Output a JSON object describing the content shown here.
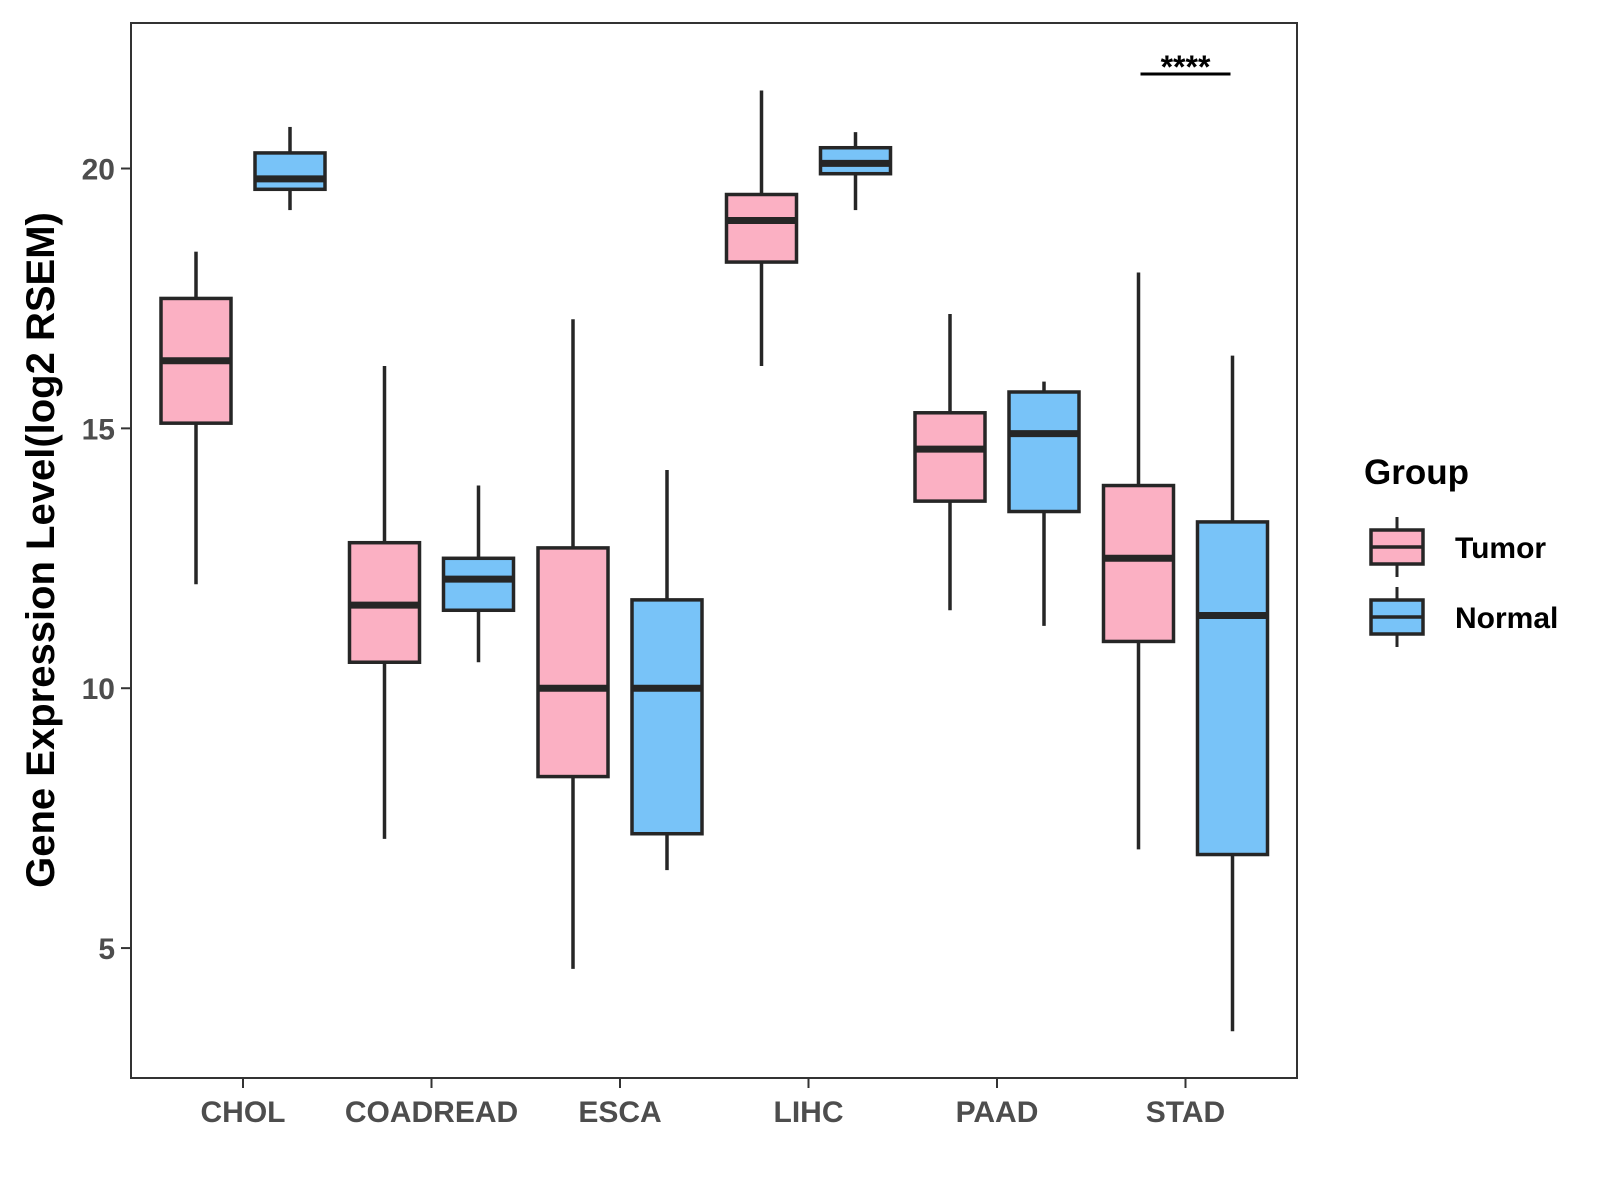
{
  "chart_data": {
    "type": "boxplot",
    "title": "",
    "xlabel": "",
    "ylabel": "Gene Expression Level(log2 RSEM)",
    "ylim": [
      2.5,
      22.8
    ],
    "yticks": [
      5,
      10,
      15,
      20
    ],
    "categories": [
      "CHOL",
      "COADREAD",
      "ESCA",
      "LIHC",
      "PAAD",
      "STAD"
    ],
    "legend": {
      "title": "Group",
      "position": "right",
      "entries": [
        {
          "name": "Tumor",
          "color": "#FBB0C3"
        },
        {
          "name": "Normal",
          "color": "#78C3F8"
        }
      ]
    },
    "series": [
      {
        "name": "Tumor",
        "color": "#FBB0C3",
        "boxes": [
          {
            "category": "CHOL",
            "min": 12.0,
            "q1": 15.1,
            "median": 16.3,
            "q3": 17.5,
            "max": 18.4
          },
          {
            "category": "COADREAD",
            "min": 7.1,
            "q1": 10.5,
            "median": 11.6,
            "q3": 12.8,
            "max": 16.2
          },
          {
            "category": "ESCA",
            "min": 4.6,
            "q1": 8.3,
            "median": 10.0,
            "q3": 12.7,
            "max": 17.1
          },
          {
            "category": "LIHC",
            "min": 16.2,
            "q1": 18.2,
            "median": 19.0,
            "q3": 19.5,
            "max": 21.5
          },
          {
            "category": "PAAD",
            "min": 11.5,
            "q1": 13.6,
            "median": 14.6,
            "q3": 15.3,
            "max": 17.2
          },
          {
            "category": "STAD",
            "min": 6.9,
            "q1": 10.9,
            "median": 12.5,
            "q3": 13.9,
            "max": 18.0
          }
        ]
      },
      {
        "name": "Normal",
        "color": "#78C3F8",
        "boxes": [
          {
            "category": "CHOL",
            "min": 19.2,
            "q1": 19.6,
            "median": 19.8,
            "q3": 20.3,
            "max": 20.8
          },
          {
            "category": "COADREAD",
            "min": 10.5,
            "q1": 11.5,
            "median": 12.1,
            "q3": 12.5,
            "max": 13.9
          },
          {
            "category": "ESCA",
            "min": 6.5,
            "q1": 7.2,
            "median": 10.0,
            "q3": 11.7,
            "max": 14.2
          },
          {
            "category": "LIHC",
            "min": 19.2,
            "q1": 19.9,
            "median": 20.1,
            "q3": 20.4,
            "max": 20.7
          },
          {
            "category": "PAAD",
            "min": 11.2,
            "q1": 13.4,
            "median": 14.9,
            "q3": 15.7,
            "max": 15.9
          },
          {
            "category": "STAD",
            "min": 3.4,
            "q1": 6.8,
            "median": 11.4,
            "q3": 13.2,
            "max": 16.4
          }
        ]
      }
    ],
    "annotations": [
      {
        "category": "STAD",
        "label": "****"
      }
    ]
  }
}
